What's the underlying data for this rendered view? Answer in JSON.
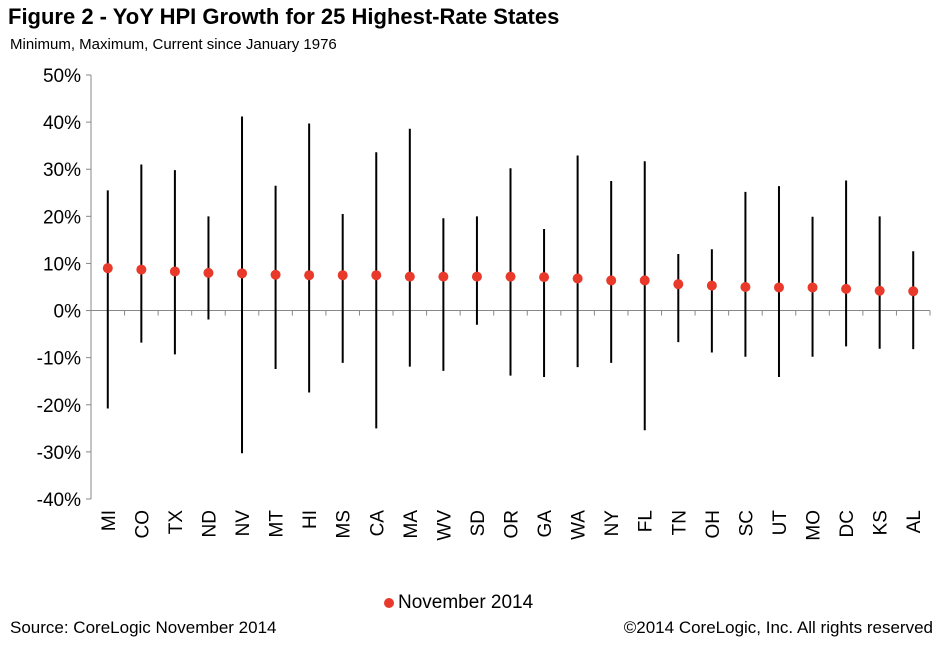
{
  "title": "Figure 2 - YoY HPI Growth for 25 Highest-Rate States",
  "subtitle": "Minimum, Maximum, Current since January 1976",
  "footer": {
    "source": "Source: CoreLogic  November 2014",
    "copyright": "©2014 CoreLogic, Inc. All rights reserved"
  },
  "chart_data": {
    "type": "scatter",
    "subtype": "high-low with current marker",
    "categories": [
      "MI",
      "CO",
      "TX",
      "ND",
      "NV",
      "MT",
      "HI",
      "MS",
      "CA",
      "MA",
      "WV",
      "SD",
      "OR",
      "GA",
      "WA",
      "NY",
      "FL",
      "TN",
      "OH",
      "SC",
      "UT",
      "MO",
      "DC",
      "KS",
      "AL"
    ],
    "series": [
      {
        "name": "Maximum",
        "values": [
          25.5,
          31,
          29.8,
          20,
          41.2,
          26.5,
          39.7,
          20.5,
          33.6,
          38.6,
          19.6,
          20,
          30.2,
          17.3,
          32.9,
          27.5,
          31.7,
          12,
          13,
          25.2,
          26.4,
          19.9,
          27.6,
          20,
          12.6
        ]
      },
      {
        "name": "Minimum",
        "values": [
          -20.8,
          -6.8,
          -9.3,
          -1.9,
          -30.3,
          -12.4,
          -17.4,
          -11.1,
          -25,
          -11.9,
          -12.8,
          -3,
          -13.8,
          -14.1,
          -12,
          -11.1,
          -25.4,
          -6.7,
          -8.9,
          -9.8,
          -14.1,
          -9.8,
          -7.6,
          -8.1,
          -8.2
        ]
      },
      {
        "name": "November 2014",
        "color": "#E8392B",
        "values": [
          9,
          8.7,
          8.3,
          8,
          7.9,
          7.6,
          7.5,
          7.5,
          7.5,
          7.2,
          7.2,
          7.2,
          7.2,
          7.1,
          6.8,
          6.4,
          6.4,
          5.6,
          5.3,
          5,
          4.9,
          4.9,
          4.6,
          4.2,
          4.1
        ]
      }
    ],
    "yticks": [
      "50%",
      "40%",
      "30%",
      "20%",
      "10%",
      "0%",
      "-10%",
      "-20%",
      "-30%",
      "-40%"
    ],
    "ylim": [
      -40,
      50
    ],
    "grid": false,
    "legend": "bottom-center",
    "xlabel": "",
    "ylabel": ""
  }
}
